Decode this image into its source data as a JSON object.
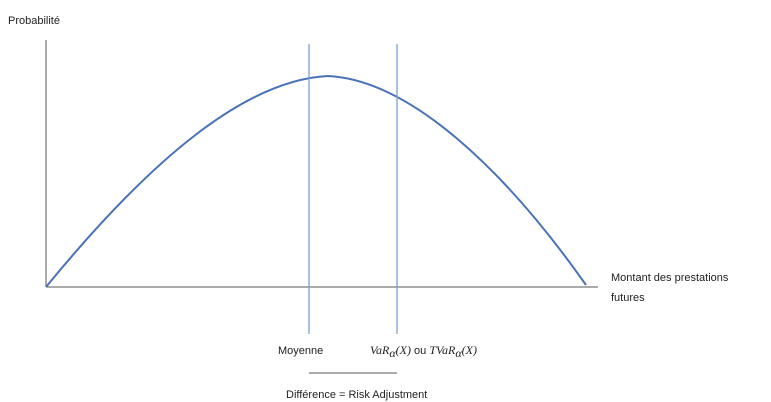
{
  "diagram": {
    "y_axis_label": "Probabilité",
    "x_axis_label_line1": "Montant des prestations",
    "x_axis_label_line2": "futures",
    "mean_label": "Moyenne",
    "var_expression": {
      "var_main": "VaR",
      "var_sub": "α",
      "var_arg": "(X)",
      "joiner": " ou ",
      "tvar_main": "TVaR",
      "tvar_sub": "α",
      "tvar_arg": "(X)"
    },
    "difference_label": "Différence = Risk Adjustment"
  },
  "colors": {
    "curve": "#4a72b8",
    "marker_lines": "#7d9fd3",
    "axes": "#555555",
    "text": "#222222"
  }
}
